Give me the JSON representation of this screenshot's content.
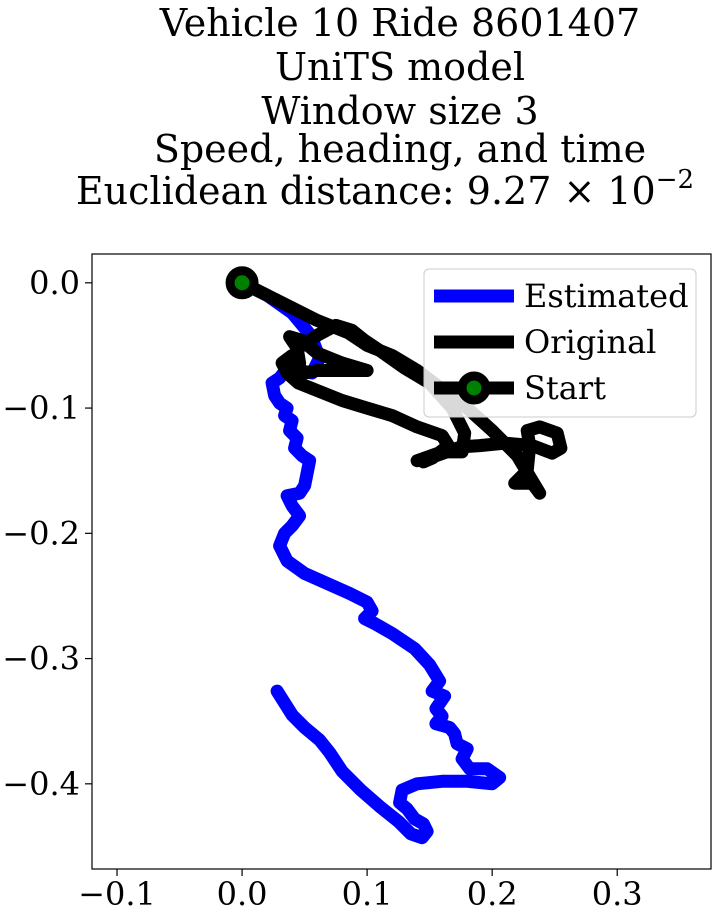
{
  "chart_data": {
    "type": "line",
    "title_lines": [
      "Vehicle 10 Ride 8601407",
      "UniTS model",
      "Window size 3",
      "Speed, heading, and time",
      "Euclidean distance: 9.27 × 10"
    ],
    "title_exponent": "−2",
    "xlabel": "",
    "ylabel": "",
    "xlim": [
      -0.12,
      0.375
    ],
    "ylim": [
      -0.468,
      0.023
    ],
    "x_ticks": [
      -0.1,
      0.0,
      0.1,
      0.2,
      0.3
    ],
    "x_tick_labels": [
      "−0.1",
      "0.0",
      "0.1",
      "0.2",
      "0.3"
    ],
    "y_ticks": [
      0.0,
      -0.1,
      -0.2,
      -0.3,
      -0.4
    ],
    "y_tick_labels": [
      "0.0",
      "−0.1",
      "−0.2",
      "−0.3",
      "−0.4"
    ],
    "grid": false,
    "legend_position": "top-right",
    "series": [
      {
        "name": "Estimated",
        "color": "#0000ff",
        "points": [
          [
            0.0,
            0.0
          ],
          [
            0.02,
            -0.01
          ],
          [
            0.04,
            -0.024
          ],
          [
            0.055,
            -0.042
          ],
          [
            0.062,
            -0.06
          ],
          [
            0.056,
            -0.072
          ],
          [
            0.046,
            -0.07
          ],
          [
            0.038,
            -0.066
          ],
          [
            0.03,
            -0.076
          ],
          [
            0.024,
            -0.08
          ],
          [
            0.026,
            -0.09
          ],
          [
            0.03,
            -0.096
          ],
          [
            0.036,
            -0.1
          ],
          [
            0.034,
            -0.106
          ],
          [
            0.04,
            -0.11
          ],
          [
            0.038,
            -0.118
          ],
          [
            0.044,
            -0.124
          ],
          [
            0.042,
            -0.132
          ],
          [
            0.048,
            -0.138
          ],
          [
            0.054,
            -0.142
          ],
          [
            0.052,
            -0.152
          ],
          [
            0.05,
            -0.162
          ],
          [
            0.046,
            -0.168
          ],
          [
            0.036,
            -0.17
          ],
          [
            0.04,
            -0.178
          ],
          [
            0.046,
            -0.186
          ],
          [
            0.04,
            -0.194
          ],
          [
            0.034,
            -0.2
          ],
          [
            0.03,
            -0.21
          ],
          [
            0.036,
            -0.222
          ],
          [
            0.05,
            -0.232
          ],
          [
            0.068,
            -0.24
          ],
          [
            0.086,
            -0.248
          ],
          [
            0.1,
            -0.255
          ],
          [
            0.104,
            -0.262
          ],
          [
            0.098,
            -0.268
          ],
          [
            0.106,
            -0.272
          ],
          [
            0.12,
            -0.28
          ],
          [
            0.138,
            -0.292
          ],
          [
            0.15,
            -0.305
          ],
          [
            0.158,
            -0.318
          ],
          [
            0.152,
            -0.326
          ],
          [
            0.162,
            -0.33
          ],
          [
            0.155,
            -0.34
          ],
          [
            0.16,
            -0.346
          ],
          [
            0.155,
            -0.352
          ],
          [
            0.166,
            -0.355
          ],
          [
            0.17,
            -0.36
          ],
          [
            0.172,
            -0.368
          ],
          [
            0.18,
            -0.372
          ],
          [
            0.176,
            -0.38
          ],
          [
            0.182,
            -0.388
          ],
          [
            0.196,
            -0.388
          ],
          [
            0.206,
            -0.395
          ],
          [
            0.2,
            -0.4
          ],
          [
            0.18,
            -0.398
          ],
          [
            0.16,
            -0.398
          ],
          [
            0.14,
            -0.4
          ],
          [
            0.128,
            -0.405
          ],
          [
            0.126,
            -0.415
          ],
          [
            0.132,
            -0.42
          ],
          [
            0.138,
            -0.428
          ],
          [
            0.145,
            -0.432
          ],
          [
            0.148,
            -0.438
          ],
          [
            0.144,
            -0.443
          ],
          [
            0.135,
            -0.44
          ],
          [
            0.125,
            -0.43
          ],
          [
            0.11,
            -0.418
          ],
          [
            0.095,
            -0.405
          ],
          [
            0.08,
            -0.39
          ],
          [
            0.07,
            -0.375
          ],
          [
            0.062,
            -0.365
          ],
          [
            0.05,
            -0.355
          ],
          [
            0.04,
            -0.345
          ],
          [
            0.028,
            -0.326
          ]
        ]
      },
      {
        "name": "Original",
        "color": "#000000",
        "points": [
          [
            0.0,
            0.0
          ],
          [
            0.03,
            -0.015
          ],
          [
            0.06,
            -0.03
          ],
          [
            0.085,
            -0.04
          ],
          [
            0.1,
            -0.05
          ],
          [
            0.12,
            -0.058
          ],
          [
            0.14,
            -0.07
          ],
          [
            0.16,
            -0.085
          ],
          [
            0.18,
            -0.1
          ],
          [
            0.2,
            -0.118
          ],
          [
            0.22,
            -0.138
          ],
          [
            0.238,
            -0.168
          ],
          [
            0.232,
            -0.16
          ],
          [
            0.218,
            -0.16
          ],
          [
            0.228,
            -0.15
          ],
          [
            0.23,
            -0.13
          ],
          [
            0.228,
            -0.118
          ],
          [
            0.238,
            -0.115
          ],
          [
            0.252,
            -0.12
          ],
          [
            0.255,
            -0.132
          ],
          [
            0.248,
            -0.136
          ],
          [
            0.232,
            -0.13
          ],
          [
            0.21,
            -0.128
          ],
          [
            0.19,
            -0.13
          ],
          [
            0.175,
            -0.131
          ],
          [
            0.155,
            -0.138
          ],
          [
            0.145,
            -0.143
          ],
          [
            0.152,
            -0.14
          ],
          [
            0.165,
            -0.13
          ],
          [
            0.16,
            -0.122
          ],
          [
            0.14,
            -0.115
          ],
          [
            0.12,
            -0.106
          ],
          [
            0.1,
            -0.1
          ],
          [
            0.08,
            -0.094
          ],
          [
            0.06,
            -0.086
          ],
          [
            0.045,
            -0.08
          ],
          [
            0.036,
            -0.072
          ],
          [
            0.032,
            -0.064
          ],
          [
            0.04,
            -0.058
          ],
          [
            0.046,
            -0.064
          ],
          [
            0.044,
            -0.052
          ],
          [
            0.038,
            -0.043
          ],
          [
            0.048,
            -0.046
          ],
          [
            0.06,
            -0.056
          ],
          [
            0.08,
            -0.064
          ],
          [
            0.1,
            -0.07
          ],
          [
            0.08,
            -0.07
          ],
          [
            0.06,
            -0.07
          ],
          [
            0.05,
            -0.072
          ],
          [
            0.04,
            -0.075
          ],
          [
            0.038,
            -0.068
          ],
          [
            0.045,
            -0.052
          ],
          [
            0.06,
            -0.042
          ],
          [
            0.075,
            -0.034
          ],
          [
            0.088,
            -0.038
          ],
          [
            0.098,
            -0.046
          ],
          [
            0.11,
            -0.054
          ],
          [
            0.13,
            -0.068
          ],
          [
            0.15,
            -0.08
          ],
          [
            0.168,
            -0.1
          ],
          [
            0.178,
            -0.12
          ],
          [
            0.176,
            -0.135
          ],
          [
            0.16,
            -0.135
          ],
          [
            0.14,
            -0.142
          ]
        ]
      }
    ],
    "start_point": {
      "name": "Start",
      "x": 0.0,
      "y": 0.0,
      "marker_fill": "#008000",
      "marker_edge": "#000000"
    },
    "legend_entries": [
      {
        "label": "Estimated",
        "color": "#0000ff",
        "marker": false
      },
      {
        "label": "Original",
        "color": "#000000",
        "marker": false
      },
      {
        "label": "Start",
        "color": "#000000",
        "marker": true
      }
    ]
  }
}
